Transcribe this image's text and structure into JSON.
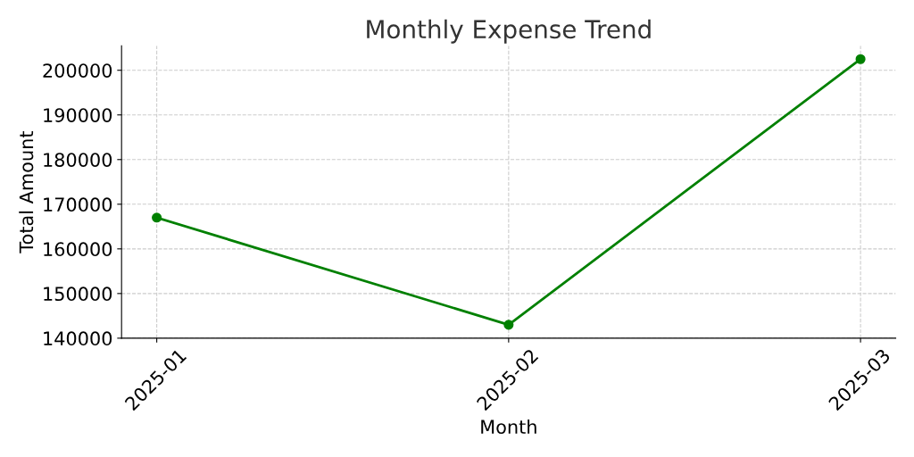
{
  "chart_data": {
    "type": "line",
    "title": "Monthly Expense Trend",
    "xlabel": "Month",
    "ylabel": "Total Amount",
    "categories": [
      "2025-01",
      "2025-02",
      "2025-03"
    ],
    "series": [
      {
        "color": "#008000",
        "values": [
          167000,
          143000,
          202500
        ]
      }
    ],
    "ylim": [
      140000,
      205500
    ],
    "yticks": [
      140000,
      150000,
      160000,
      170000,
      180000,
      190000,
      200000
    ],
    "grid": true,
    "marker": "circle",
    "line_style": "solid",
    "legend": false
  }
}
